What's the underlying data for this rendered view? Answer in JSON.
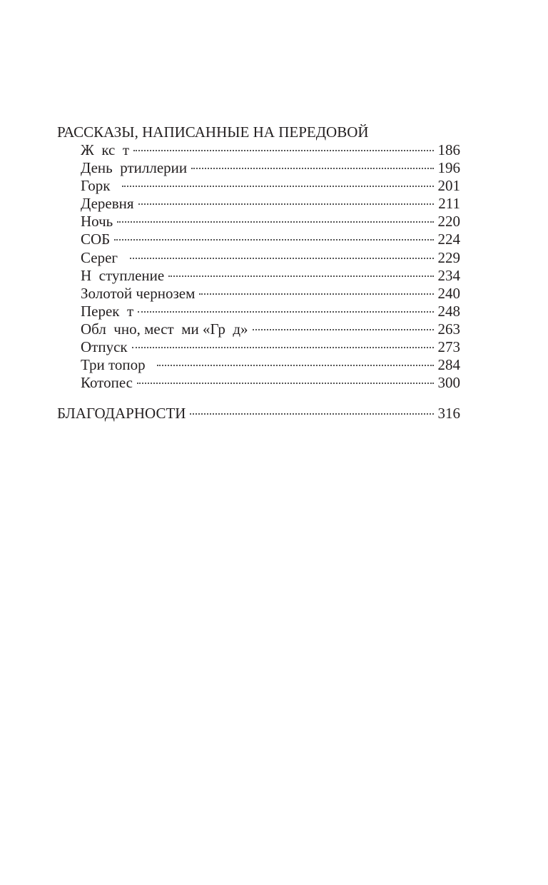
{
  "sections": [
    {
      "title": "РАССКАЗЫ, НАПИСАННЫЕ НА ПЕРЕДОВОЙ",
      "entries": [
        {
          "title": "Ж  кс  т",
          "page": "186"
        },
        {
          "title": "День  ртиллерии",
          "page": "196"
        },
        {
          "title": "Горк  ",
          "page": "201"
        },
        {
          "title": "Деревня",
          "page": "211"
        },
        {
          "title": "Ночь",
          "page": "220"
        },
        {
          "title": "СОБ",
          "page": "224"
        },
        {
          "title": "Серег  ",
          "page": "229"
        },
        {
          "title": "Н  ступление",
          "page": "234"
        },
        {
          "title": "Золотой чернозем",
          "page": "240"
        },
        {
          "title": "Перек  т",
          "page": "248"
        },
        {
          "title": "Обл  чно, мест  ми «Гр  д»",
          "page": "263"
        },
        {
          "title": "Отпуск",
          "page": "273"
        },
        {
          "title": "Три топор  ",
          "page": "284"
        },
        {
          "title": "Котопес",
          "page": "300"
        }
      ]
    }
  ],
  "acknowledgements": {
    "title": "БЛАГОДАРНОСТИ",
    "page": "316"
  }
}
